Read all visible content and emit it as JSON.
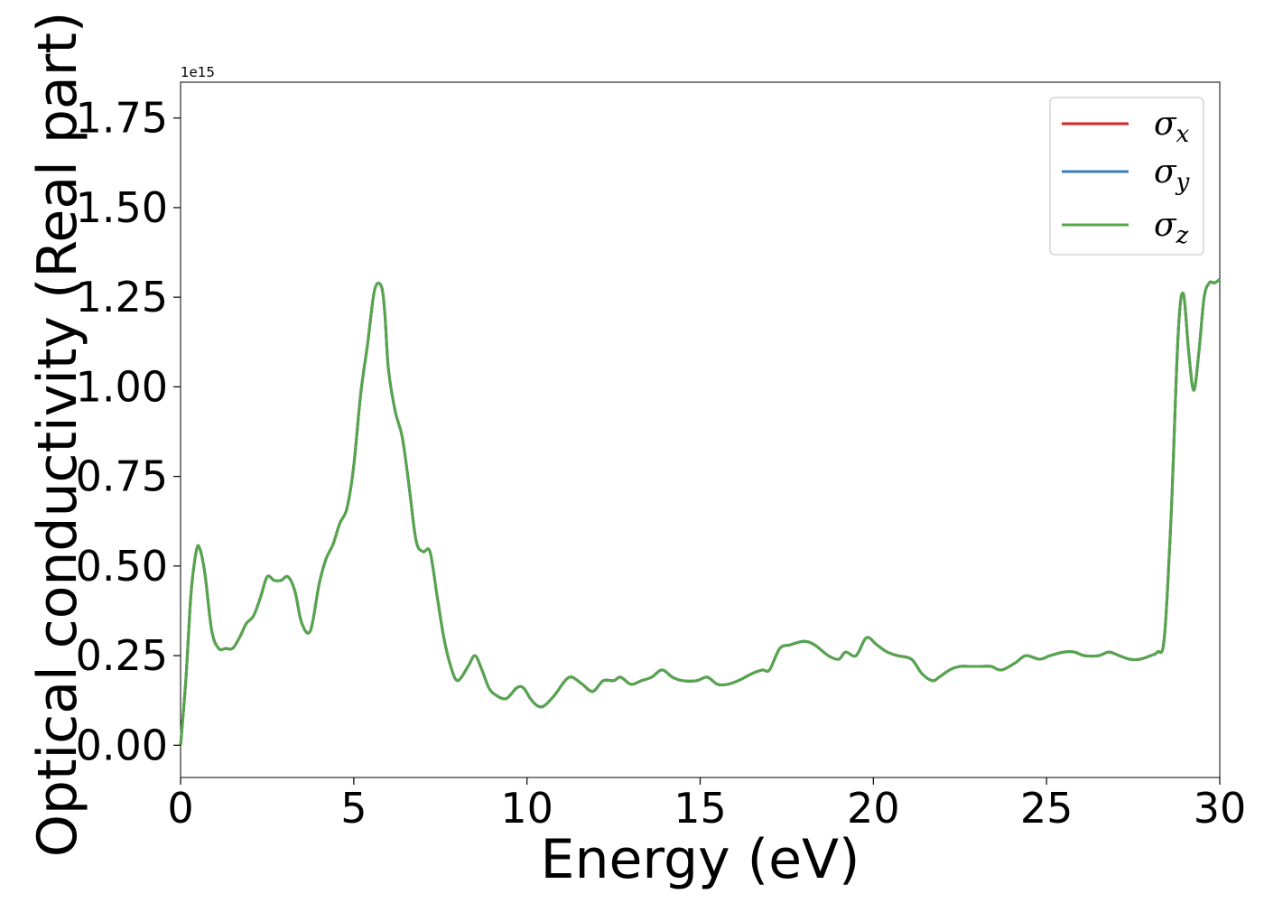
{
  "chart_data": {
    "type": "line",
    "title": "",
    "xlabel": "Energy (eV)",
    "ylabel": "Optical conductivity (Real part)",
    "y_offset_text": "1e15",
    "xlim": [
      0,
      30
    ],
    "ylim": [
      -0.09,
      1.85
    ],
    "xticks": [
      0,
      5,
      10,
      15,
      20,
      25,
      30
    ],
    "xtick_labels": [
      "0",
      "5",
      "10",
      "15",
      "20",
      "25",
      "30"
    ],
    "yticks": [
      0.0,
      0.25,
      0.5,
      0.75,
      1.0,
      1.25,
      1.5,
      1.75
    ],
    "ytick_labels": [
      "0.00",
      "0.25",
      "0.50",
      "0.75",
      "1.00",
      "1.25",
      "1.50",
      "1.75"
    ],
    "grid": false,
    "legend_position": "top-right",
    "series": [
      {
        "name": "σx",
        "symbol": "σ",
        "sub": "x",
        "color": "#d62728"
      },
      {
        "name": "σy",
        "symbol": "σ",
        "sub": "y",
        "color": "#3a7cb8"
      },
      {
        "name": "σz",
        "symbol": "σ",
        "sub": "z",
        "color": "#55a64b"
      }
    ],
    "x": [
      0.0,
      0.15,
      0.3,
      0.45,
      0.55,
      0.7,
      0.9,
      1.1,
      1.3,
      1.5,
      1.7,
      1.9,
      2.1,
      2.3,
      2.5,
      2.7,
      2.9,
      3.1,
      3.3,
      3.5,
      3.75,
      4.0,
      4.2,
      4.4,
      4.6,
      4.8,
      5.0,
      5.2,
      5.4,
      5.6,
      5.8,
      5.9,
      6.0,
      6.2,
      6.4,
      6.6,
      6.8,
      7.0,
      7.2,
      7.4,
      7.6,
      7.8,
      8.0,
      8.3,
      8.5,
      8.7,
      8.9,
      9.1,
      9.4,
      9.7,
      9.9,
      10.1,
      10.3,
      10.5,
      10.8,
      11.1,
      11.3,
      11.6,
      11.9,
      12.2,
      12.5,
      12.7,
      13.0,
      13.3,
      13.6,
      13.9,
      14.2,
      14.5,
      14.9,
      15.2,
      15.5,
      15.8,
      16.1,
      16.5,
      16.8,
      17.0,
      17.3,
      17.6,
      18.0,
      18.3,
      18.7,
      19.0,
      19.2,
      19.5,
      19.8,
      20.1,
      20.4,
      20.7,
      21.1,
      21.4,
      21.7,
      21.9,
      22.2,
      22.5,
      22.8,
      23.1,
      23.4,
      23.7,
      24.1,
      24.4,
      24.8,
      25.1,
      25.5,
      25.8,
      26.1,
      26.5,
      26.8,
      27.1,
      27.4,
      27.7,
      28.0,
      28.2,
      28.4,
      28.6,
      28.8,
      28.95,
      29.1,
      29.25,
      29.4,
      29.55,
      29.7,
      29.85,
      30.0
    ],
    "y": [
      0.0,
      0.18,
      0.42,
      0.54,
      0.55,
      0.48,
      0.32,
      0.27,
      0.27,
      0.27,
      0.3,
      0.34,
      0.36,
      0.41,
      0.47,
      0.46,
      0.46,
      0.47,
      0.43,
      0.34,
      0.32,
      0.45,
      0.52,
      0.56,
      0.62,
      0.66,
      0.78,
      0.98,
      1.12,
      1.27,
      1.28,
      1.2,
      1.05,
      0.93,
      0.86,
      0.72,
      0.57,
      0.54,
      0.54,
      0.42,
      0.3,
      0.22,
      0.18,
      0.22,
      0.25,
      0.21,
      0.16,
      0.14,
      0.13,
      0.16,
      0.16,
      0.13,
      0.11,
      0.11,
      0.14,
      0.18,
      0.19,
      0.17,
      0.15,
      0.18,
      0.18,
      0.19,
      0.17,
      0.18,
      0.19,
      0.21,
      0.19,
      0.18,
      0.18,
      0.19,
      0.17,
      0.17,
      0.18,
      0.2,
      0.21,
      0.21,
      0.27,
      0.28,
      0.29,
      0.28,
      0.25,
      0.24,
      0.26,
      0.25,
      0.3,
      0.28,
      0.26,
      0.25,
      0.24,
      0.2,
      0.18,
      0.19,
      0.21,
      0.22,
      0.22,
      0.22,
      0.22,
      0.21,
      0.23,
      0.25,
      0.24,
      0.25,
      0.26,
      0.26,
      0.25,
      0.25,
      0.26,
      0.25,
      0.24,
      0.24,
      0.25,
      0.26,
      0.3,
      0.65,
      1.15,
      1.26,
      1.1,
      0.99,
      1.1,
      1.25,
      1.29,
      1.29,
      1.3
    ]
  }
}
